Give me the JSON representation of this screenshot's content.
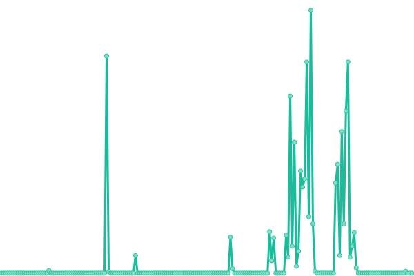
{
  "chart_data": {
    "type": "line",
    "title": "",
    "xlabel": "",
    "ylabel": "",
    "grid": false,
    "legend": "none",
    "markers": true,
    "ylim": [
      0,
      100
    ],
    "colors": {
      "line": "#1abc9c",
      "marker_fill": "#7fdcc6",
      "marker_stroke": "#2ec4a0"
    },
    "values": [
      0.3,
      0.3,
      0.3,
      0.3,
      0.3,
      0.3,
      0.3,
      0.3,
      0.3,
      0.3,
      0.3,
      0.3,
      0.3,
      0.3,
      0.3,
      0.3,
      0.3,
      0.3,
      0.3,
      0.3,
      0.3,
      0.3,
      0.3,
      1.3,
      0.3,
      0.3,
      0.3,
      0.3,
      0.3,
      0.3,
      0.3,
      0.3,
      0.3,
      0.3,
      0.3,
      0.3,
      0.3,
      0.3,
      0.3,
      0.3,
      0.3,
      0.3,
      0.3,
      0.3,
      0.3,
      0.3,
      0.3,
      0.3,
      0.3,
      0.3,
      0.3,
      82.7,
      0.8,
      0.3,
      0.3,
      0.3,
      0.3,
      0.3,
      0.3,
      0.3,
      0.3,
      0.3,
      0.3,
      0.3,
      0.3,
      7,
      0.3,
      0.3,
      0.3,
      0.3,
      0.3,
      0.3,
      0.3,
      0.3,
      0.3,
      0.3,
      0.3,
      0.3,
      0.3,
      0.3,
      0.3,
      0.3,
      0.3,
      0.3,
      0.3,
      0.3,
      0.3,
      0.3,
      0.3,
      0.3,
      0.3,
      0.3,
      0.3,
      0.3,
      0.3,
      0.3,
      0.3,
      0.3,
      0.3,
      0.3,
      0.3,
      0.3,
      0.3,
      0.3,
      0.3,
      0.3,
      0.3,
      0.3,
      0.3,
      0.3,
      0.3,
      14,
      2,
      0.3,
      0.3,
      0.3,
      0.3,
      0.3,
      0.3,
      0.3,
      0.3,
      0.3,
      0.3,
      0.3,
      0.3,
      0.3,
      0.3,
      0.3,
      0.3,
      0.3,
      16,
      5,
      13.6,
      0.3,
      0.3,
      0.3,
      0.3,
      0.3,
      14.7,
      6.3,
      67.5,
      10.5,
      50,
      2.9,
      8.6,
      39,
      33,
      36,
      80.4,
      21.7,
      100,
      19,
      1,
      0.3,
      0.3,
      0.3,
      0.3,
      0.3,
      0.3,
      0.3,
      0.3,
      0.3,
      34.5,
      41.6,
      7,
      54,
      19,
      61.8,
      80.4,
      6.3,
      10.5,
      15.7,
      2.3,
      0.3,
      0.3,
      0.3,
      0.3,
      0.3,
      0.3,
      0.3,
      0.3,
      0.3,
      0.3,
      0.3,
      0.3,
      0.3,
      0.3,
      0.3,
      0.3,
      0.3,
      0.3,
      0.3,
      0.3,
      0.3,
      0.3,
      0.3,
      1,
      0.3,
      0.3,
      0.3
    ]
  }
}
